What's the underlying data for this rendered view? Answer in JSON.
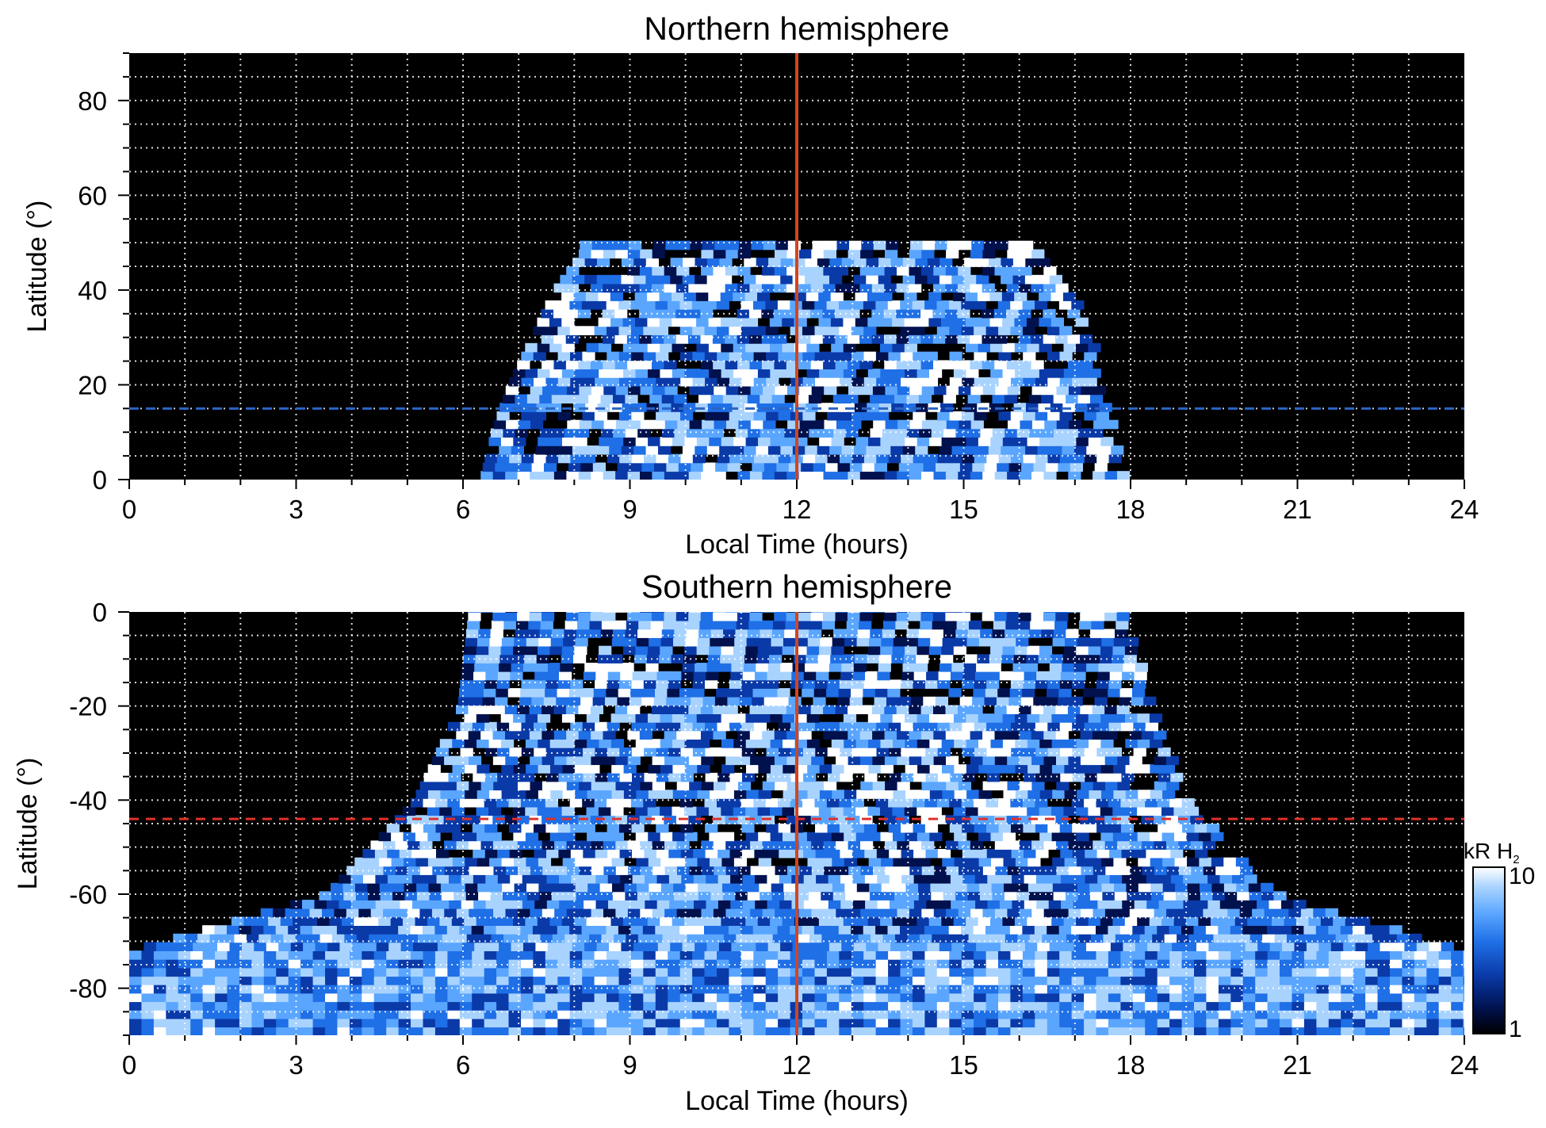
{
  "chart_data": [
    {
      "type": "heatmap",
      "title": "Northern hemisphere",
      "xlabel": "Local Time (hours)",
      "ylabel": "Latitude (°)",
      "xlim": [
        0,
        24
      ],
      "ylim": [
        0,
        90
      ],
      "xticks": [
        0,
        3,
        6,
        9,
        12,
        15,
        18,
        21,
        24
      ],
      "xtick_labels": [
        "0",
        "3",
        "6",
        "9",
        "12",
        "15",
        "18",
        "21",
        "24"
      ],
      "yticks": [
        0,
        20,
        40,
        60,
        80
      ],
      "ytick_labels": [
        "0",
        "20",
        "40",
        "60",
        "80"
      ],
      "grid": true,
      "reference_lines": [
        {
          "orientation": "vertical",
          "value": 12,
          "style": "solid",
          "color": "#d2451e"
        },
        {
          "orientation": "horizontal",
          "value": 15,
          "style": "dashed",
          "color": "#2b64c4"
        }
      ],
      "coverage": [
        {
          "lat": 0,
          "lt_min": 6.3,
          "lt_max": 17.8
        },
        {
          "lat": 10,
          "lt_min": 6.5,
          "lt_max": 17.6
        },
        {
          "lat": 20,
          "lt_min": 6.8,
          "lt_max": 17.4
        },
        {
          "lat": 30,
          "lt_min": 7.2,
          "lt_max": 17.2
        },
        {
          "lat": 40,
          "lt_min": 7.6,
          "lt_max": 16.9
        },
        {
          "lat": 48,
          "lt_min": 8.1,
          "lt_max": 16.2
        }
      ]
    },
    {
      "type": "heatmap",
      "title": "Southern hemisphere",
      "xlabel": "Local Time (hours)",
      "ylabel": "Latitude (°)",
      "xlim": [
        0,
        24
      ],
      "ylim": [
        -90,
        0
      ],
      "xticks": [
        0,
        3,
        6,
        9,
        12,
        15,
        18,
        21,
        24
      ],
      "xtick_labels": [
        "0",
        "3",
        "6",
        "9",
        "12",
        "15",
        "18",
        "21",
        "24"
      ],
      "yticks": [
        0,
        -20,
        -40,
        -60,
        -80
      ],
      "ytick_labels": [
        "0",
        "-20",
        "-40",
        "-60",
        "-80"
      ],
      "grid": true,
      "reference_lines": [
        {
          "orientation": "vertical",
          "value": 12,
          "style": "solid",
          "color": "#d2451e"
        },
        {
          "orientation": "horizontal",
          "value": -44,
          "style": "dashed",
          "color": "#e0312a"
        }
      ],
      "coverage": [
        {
          "lat": 0,
          "lt_min": 6.1,
          "lt_max": 17.8
        },
        {
          "lat": -20,
          "lt_min": 5.9,
          "lt_max": 18.3
        },
        {
          "lat": -40,
          "lt_min": 5.1,
          "lt_max": 18.9
        },
        {
          "lat": -60,
          "lt_min": 3.5,
          "lt_max": 20.5
        },
        {
          "lat": -72,
          "lt_min": 0.0,
          "lt_max": 24.0
        },
        {
          "lat": -88,
          "lt_min": 0.0,
          "lt_max": 24.0
        }
      ]
    }
  ],
  "colorbar": {
    "label_main": "kR H",
    "label_sub": "2",
    "scale": "log",
    "min": 1,
    "max": 10,
    "tick_labels": [
      "10",
      "1"
    ],
    "colors": [
      "#000000",
      "#00114d",
      "#0a3aa8",
      "#1f6fe6",
      "#5aa6ff",
      "#a9d3ff",
      "#ffffff"
    ]
  }
}
